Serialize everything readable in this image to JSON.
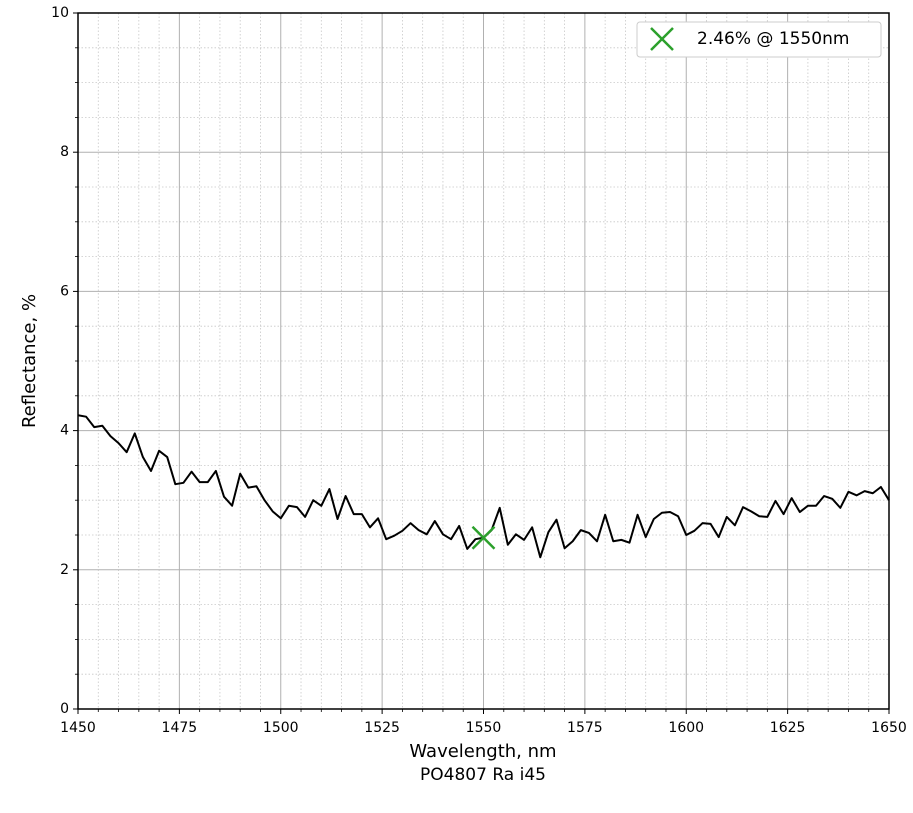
{
  "chart_data": {
    "type": "line",
    "title": "PO4807 Ra i45",
    "xlabel": "Wavelength, nm",
    "ylabel": "Reflectance, %",
    "x": [
      1450,
      1452,
      1454,
      1456,
      1458,
      1460,
      1462,
      1464,
      1466,
      1468,
      1470,
      1472,
      1474,
      1476,
      1478,
      1480,
      1482,
      1484,
      1486,
      1488,
      1490,
      1492,
      1494,
      1496,
      1498,
      1500,
      1502,
      1504,
      1506,
      1508,
      1510,
      1512,
      1514,
      1516,
      1518,
      1520,
      1522,
      1524,
      1526,
      1528,
      1530,
      1532,
      1534,
      1536,
      1538,
      1540,
      1542,
      1544,
      1546,
      1548,
      1550,
      1552,
      1554,
      1556,
      1558,
      1560,
      1562,
      1564,
      1566,
      1568,
      1570,
      1572,
      1574,
      1576,
      1578,
      1580,
      1582,
      1584,
      1586,
      1588,
      1590,
      1592,
      1594,
      1596,
      1598,
      1600,
      1602,
      1604,
      1606,
      1608,
      1610,
      1612,
      1614,
      1616,
      1618,
      1620,
      1622,
      1624,
      1626,
      1628,
      1630,
      1632,
      1634,
      1636,
      1638,
      1640,
      1642,
      1644,
      1646,
      1648,
      1650
    ],
    "series": [
      {
        "color": "#000000",
        "values": [
          4.22,
          4.2,
          4.05,
          4.07,
          3.92,
          3.82,
          3.69,
          3.96,
          3.62,
          3.42,
          3.71,
          3.62,
          3.23,
          3.25,
          3.41,
          3.26,
          3.26,
          3.42,
          3.05,
          2.92,
          3.38,
          3.18,
          3.2,
          3.0,
          2.84,
          2.74,
          2.92,
          2.9,
          2.76,
          3.0,
          2.92,
          3.16,
          2.73,
          3.06,
          2.8,
          2.8,
          2.61,
          2.74,
          2.44,
          2.49,
          2.56,
          2.67,
          2.57,
          2.51,
          2.7,
          2.51,
          2.44,
          2.63,
          2.3,
          2.44,
          2.46,
          2.57,
          2.89,
          2.36,
          2.51,
          2.43,
          2.61,
          2.18,
          2.54,
          2.72,
          2.31,
          2.41,
          2.57,
          2.53,
          2.41,
          2.79,
          2.41,
          2.43,
          2.39,
          2.79,
          2.47,
          2.73,
          2.82,
          2.83,
          2.77,
          2.5,
          2.56,
          2.67,
          2.66,
          2.47,
          2.76,
          2.64,
          2.9,
          2.84,
          2.77,
          2.76,
          2.99,
          2.8,
          3.03,
          2.83,
          2.92,
          2.92,
          3.06,
          3.02,
          2.89,
          3.12,
          3.07,
          3.13,
          3.1,
          3.19,
          3.0
        ]
      },
      {
        "name": "2.46% @ 1550nm",
        "color": "#2ca02c",
        "marker": "x",
        "x": [
          1550
        ],
        "values": [
          2.46
        ]
      }
    ],
    "xlim": [
      1450,
      1650
    ],
    "xticks": [
      1450,
      1475,
      1500,
      1525,
      1550,
      1575,
      1600,
      1625,
      1650
    ],
    "ylim": [
      0,
      10
    ],
    "yticks": [
      0,
      2,
      4,
      6,
      8,
      10
    ],
    "grid": true,
    "minor_grid": {
      "x": 5,
      "y": 4
    },
    "legend": "upper right"
  }
}
